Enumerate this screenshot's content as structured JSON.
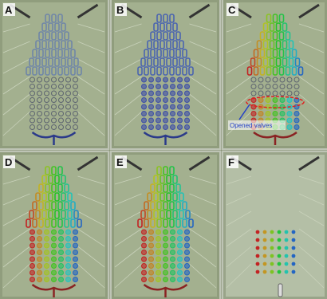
{
  "panels": [
    {
      "label": "A"
    },
    {
      "label": "B"
    },
    {
      "label": "C",
      "annotation": "Opened valves"
    },
    {
      "label": "D"
    },
    {
      "label": "E"
    },
    {
      "label": "F"
    }
  ]
}
